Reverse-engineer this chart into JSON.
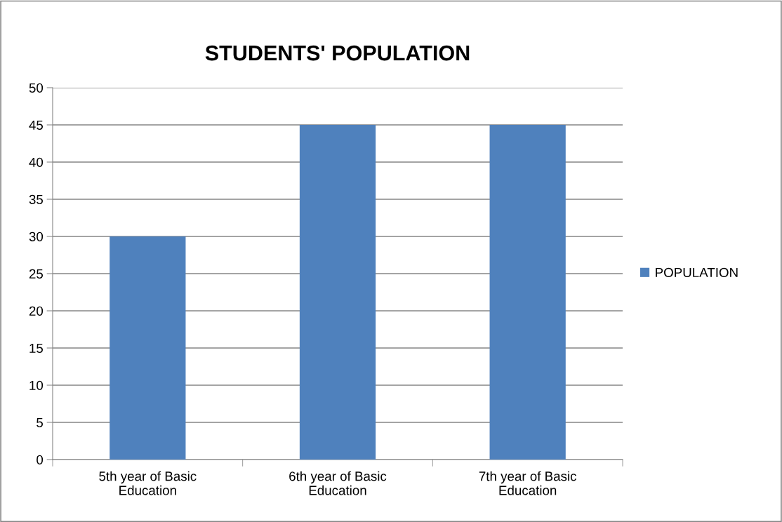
{
  "chart_data": {
    "type": "bar",
    "title": "STUDENTS' POPULATION",
    "categories": [
      "5th year of Basic\nEducation",
      "6th year of Basic\nEducation",
      "7th year of Basic\nEducation"
    ],
    "series": [
      {
        "name": "POPULATION",
        "color": "#4f81bd",
        "values": [
          30,
          45,
          45
        ]
      }
    ],
    "ylim": [
      0,
      50
    ],
    "yticks": [
      0,
      5,
      10,
      15,
      20,
      25,
      30,
      35,
      40,
      45,
      50
    ],
    "grid": "y",
    "legend": "right"
  }
}
